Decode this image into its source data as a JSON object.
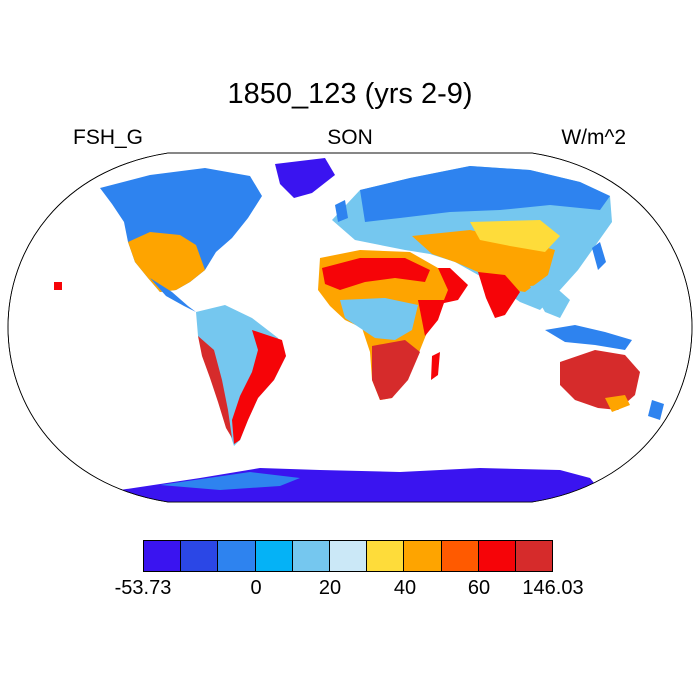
{
  "title": "1850_123 (yrs 2-9)",
  "left_label": "FSH_G",
  "center_label": "SON",
  "right_label": "W/m^2",
  "colorbar": {
    "colors": [
      "#3a14f0",
      "#2b47e6",
      "#2e83ef",
      "#05b2f6",
      "#75c7ef",
      "#cbe8f7",
      "#fedc3a",
      "#fea400",
      "#ff5a00",
      "#f60408",
      "#d62b2b"
    ],
    "ticks": [
      {
        "label": "-53.73"
      },
      {
        "label": "0"
      },
      {
        "label": "20"
      },
      {
        "label": "40"
      },
      {
        "label": "60"
      },
      {
        "label": "146.03"
      }
    ]
  },
  "map": {
    "projection": "robinson",
    "field": "FSH_G",
    "min": -53.73,
    "max": 146.03
  }
}
